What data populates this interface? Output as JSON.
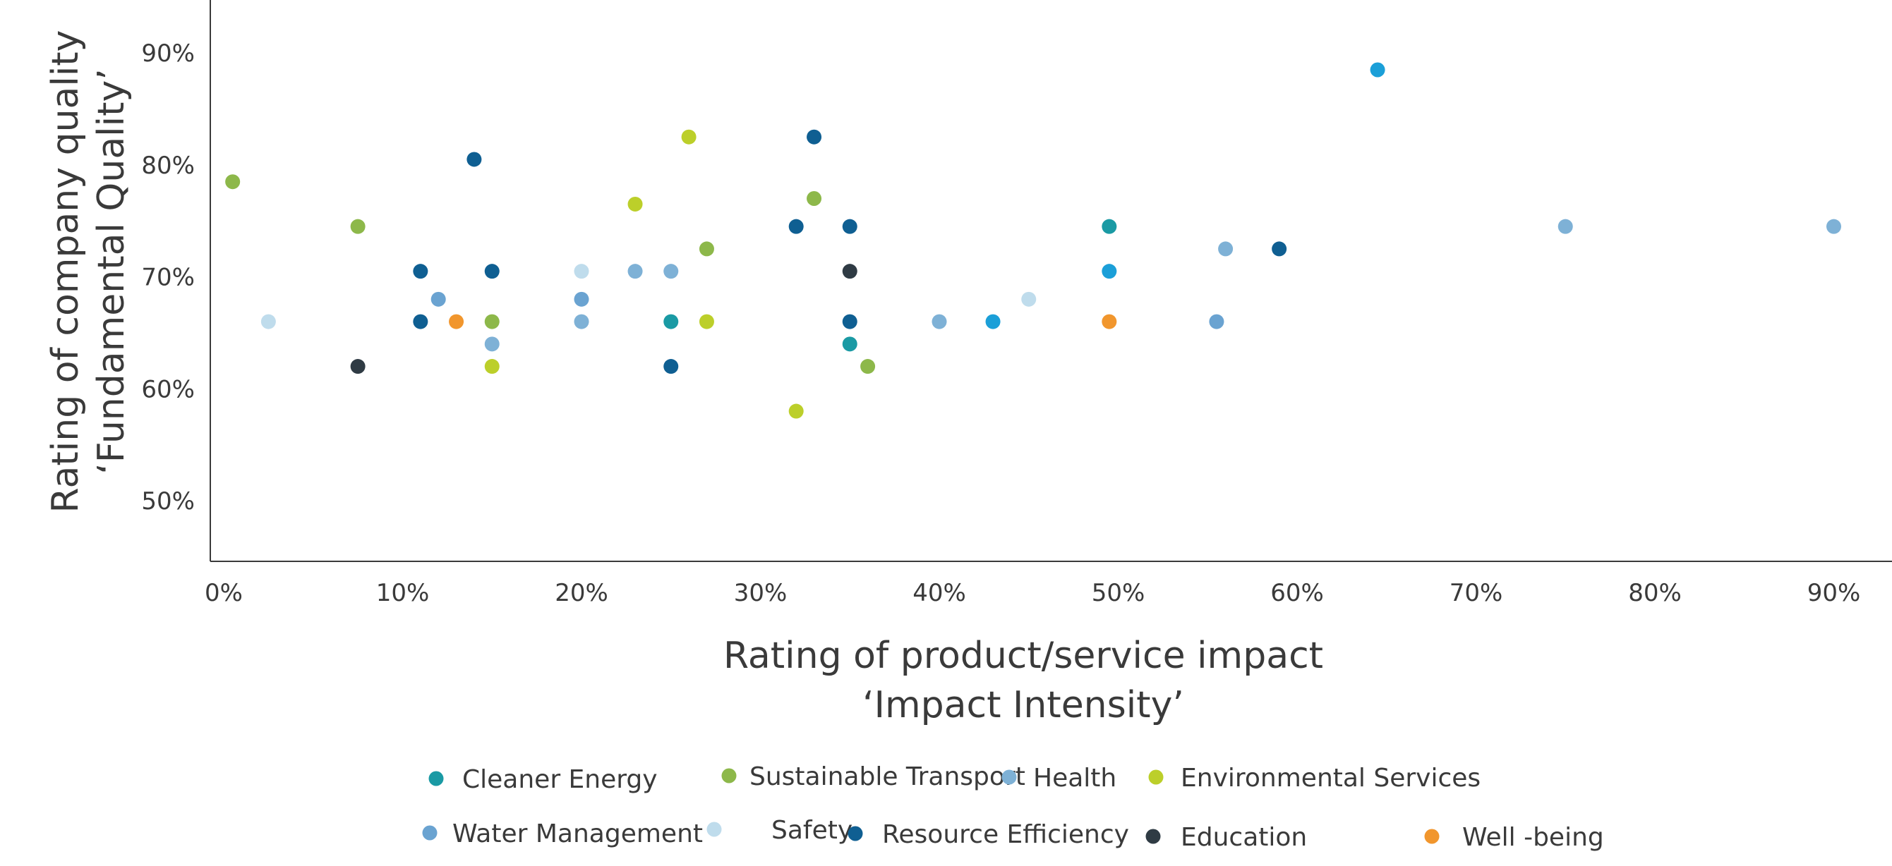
{
  "chart_data": {
    "type": "scatter",
    "xlabel": [
      "Rating of product/service impact",
      "‘Impact Intensity’"
    ],
    "ylabel": [
      "Rating of company quality",
      "‘Fundamental Quality’"
    ],
    "xlim": [
      0,
      93
    ],
    "ylim": [
      45,
      95
    ],
    "x_ticks": [
      0,
      10,
      20,
      30,
      40,
      50,
      60,
      70,
      80,
      90
    ],
    "x_tick_labels": [
      "0%",
      "10%",
      "20%",
      "30%",
      "40%",
      "50%",
      "60%",
      "70%",
      "80%",
      "90%"
    ],
    "y_ticks": [
      50,
      60,
      70,
      80,
      90
    ],
    "y_tick_labels": [
      "50%",
      "60%",
      "70%",
      "80%",
      "90%"
    ],
    "grid": false,
    "legend_position": "bottom",
    "series": [
      {
        "name": "Cleaner Energy",
        "color": "#1a9aa4",
        "points": [
          [
            25,
            66
          ],
          [
            35,
            64
          ],
          [
            49.5,
            74.5
          ]
        ]
      },
      {
        "name": "Sustainable Transport",
        "color": "#8db84a",
        "points": [
          [
            0.5,
            78.5
          ],
          [
            7.5,
            74.5
          ],
          [
            15,
            66
          ],
          [
            27,
            72.5
          ],
          [
            33,
            77
          ],
          [
            36,
            62
          ]
        ]
      },
      {
        "name": "Health",
        "color": "#7eb1d6",
        "points": [
          [
            15,
            64
          ],
          [
            20,
            66
          ],
          [
            23,
            70.5
          ],
          [
            25,
            70.5
          ],
          [
            40,
            66
          ],
          [
            56,
            72.5
          ],
          [
            75,
            74.5
          ],
          [
            90,
            74.5
          ]
        ]
      },
      {
        "name": "Environmental Services",
        "color": "#bccf2a",
        "points": [
          [
            15,
            62
          ],
          [
            23,
            76.5
          ],
          [
            26,
            82.5
          ],
          [
            27,
            66
          ],
          [
            32,
            58
          ]
        ]
      },
      {
        "name": "Water Management",
        "color": "#6aa3d1",
        "points": [
          [
            12,
            68
          ],
          [
            20,
            68
          ],
          [
            55.5,
            66
          ]
        ]
      },
      {
        "name": "Safety",
        "color": "#bfdcec",
        "points": [
          [
            2.5,
            66
          ],
          [
            20,
            70.5
          ],
          [
            45,
            68
          ]
        ]
      },
      {
        "name": "Resource Efficiency",
        "color": "#0f5f92",
        "points": [
          [
            11,
            70.5
          ],
          [
            11,
            66
          ],
          [
            14,
            80.5
          ],
          [
            15,
            70.5
          ],
          [
            25,
            62
          ],
          [
            32,
            74.5
          ],
          [
            33,
            82.5
          ],
          [
            35,
            74.5
          ],
          [
            35,
            66
          ],
          [
            59,
            72.5
          ]
        ]
      },
      {
        "name": "Education",
        "color": "#2f3b44",
        "points": [
          [
            7.5,
            62
          ],
          [
            35,
            70.5
          ]
        ]
      },
      {
        "name": "Well -being",
        "color": "#f1962d",
        "points": [
          [
            13,
            66
          ],
          [
            49.5,
            66
          ]
        ]
      },
      {
        "name": "",
        "color": "#1b9fd8",
        "points": [
          [
            43,
            66
          ],
          [
            49.5,
            70.5
          ],
          [
            64.5,
            88.5
          ]
        ]
      }
    ]
  }
}
